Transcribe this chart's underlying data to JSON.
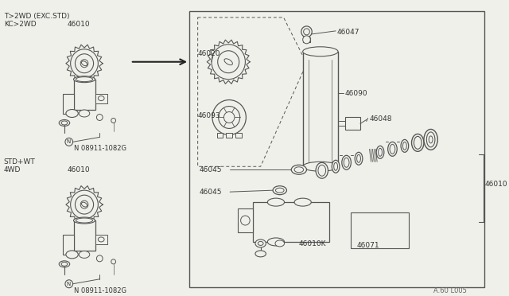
{
  "bg_color": "#f0f0eb",
  "line_color": "#555555",
  "text_color": "#333333",
  "page_code": "A.60 L005",
  "labels": {
    "top_left_line1": "T>2WD (EXC.STD)",
    "top_left_line2": "KC>2WD",
    "part_46010_top": "46010",
    "part_08911_top": "N 08911-1082G",
    "std_label": "STD+WT",
    "fwd_label": "4WD",
    "part_46010_bot": "46010",
    "part_08911_bot": "N 08911-1082G",
    "part_46020": "46020",
    "part_46093": "46093",
    "part_46047": "46047",
    "part_46090": "46090",
    "part_46048": "46048",
    "part_46045a": "46045",
    "part_46045b": "46045",
    "part_46010k": "46010K",
    "part_46071": "46071",
    "part_46010r": "46010"
  }
}
